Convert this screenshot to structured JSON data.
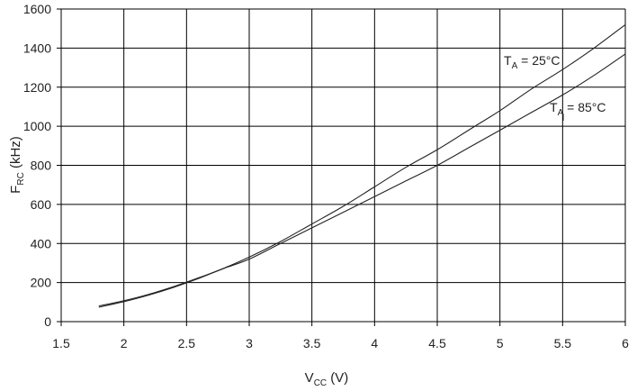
{
  "chart_data": {
    "type": "line",
    "title": "",
    "xlabel": {
      "main": "V",
      "sub": "CC",
      "rest": " (V)"
    },
    "ylabel": {
      "main": "F",
      "sub": "RC",
      "rest": " (kHz)"
    },
    "xlim": [
      1.5,
      6
    ],
    "ylim": [
      0,
      1600
    ],
    "x_ticks": [
      1.5,
      2,
      2.5,
      3,
      3.5,
      4,
      4.5,
      5,
      5.5,
      6
    ],
    "x_tick_labels": [
      "1.5",
      "2",
      "2.5",
      "3",
      "3.5",
      "4",
      "4.5",
      "5",
      "5.5",
      "6"
    ],
    "y_ticks": [
      0,
      200,
      400,
      600,
      800,
      1000,
      1200,
      1400,
      1600
    ],
    "y_tick_labels": [
      "0",
      "200",
      "400",
      "600",
      "800",
      "1000",
      "1200",
      "1400",
      "1600"
    ],
    "grid": true,
    "line_color": "#222222",
    "grid_color": "#000000",
    "series": [
      {
        "label": {
          "main": "T",
          "sub": "A",
          "rest": " = 25°C"
        },
        "x": [
          1.8,
          2.0,
          2.2,
          2.4,
          2.6,
          2.8,
          3.0,
          3.25,
          3.5,
          3.75,
          4.0,
          4.25,
          4.5,
          4.75,
          5.0,
          5.25,
          5.5,
          5.75,
          6.0
        ],
        "y": [
          80,
          107,
          140,
          180,
          225,
          274,
          330,
          410,
          500,
          590,
          690,
          790,
          880,
          980,
          1080,
          1190,
          1290,
          1400,
          1520
        ]
      },
      {
        "label": {
          "main": "T",
          "sub": "A",
          "rest": " = 85°C"
        },
        "x": [
          1.8,
          2.0,
          2.2,
          2.4,
          2.6,
          2.8,
          3.0,
          3.25,
          3.5,
          3.75,
          4.0,
          4.25,
          4.5,
          4.75,
          5.0,
          5.25,
          5.5,
          5.75,
          6.0
        ],
        "y": [
          74,
          102,
          136,
          176,
          222,
          273,
          320,
          400,
          480,
          560,
          640,
          720,
          800,
          890,
          980,
          1070,
          1160,
          1260,
          1370
        ]
      }
    ]
  }
}
